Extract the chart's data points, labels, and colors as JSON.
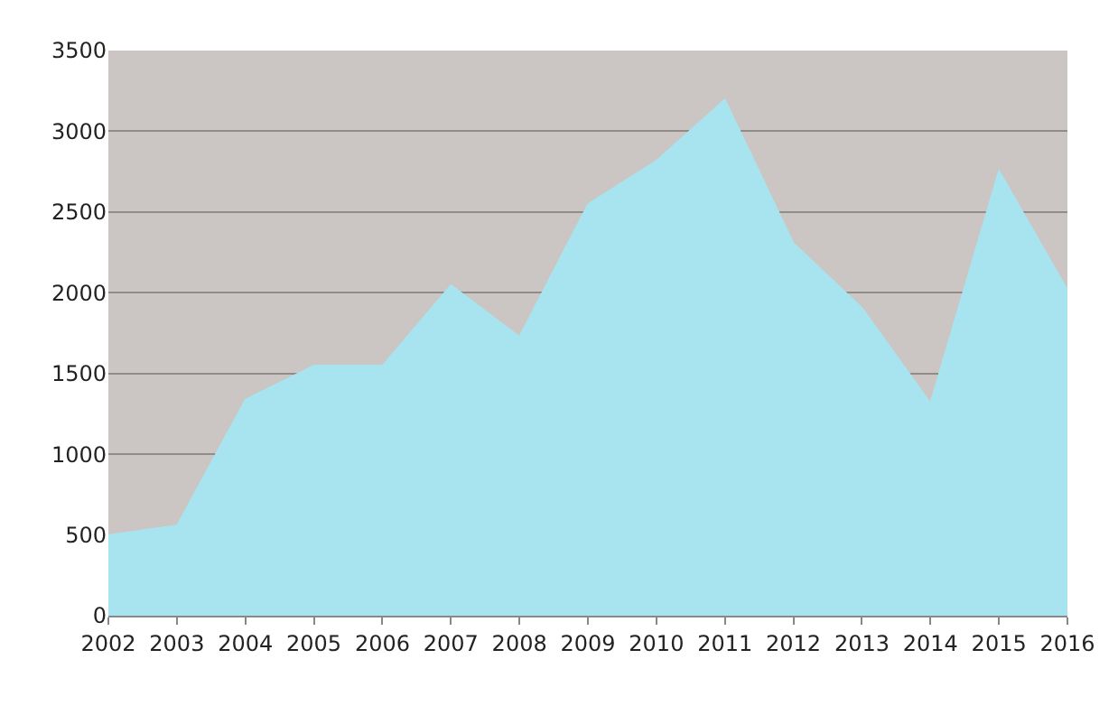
{
  "chart_data": {
    "type": "area",
    "categories": [
      "2002",
      "2003",
      "2004",
      "2005",
      "2006",
      "2007",
      "2008",
      "2009",
      "2010",
      "2011",
      "2012",
      "2013",
      "2014",
      "2015",
      "2016"
    ],
    "values": [
      500,
      560,
      1340,
      1550,
      1550,
      2050,
      1730,
      2550,
      2820,
      3200,
      2310,
      1910,
      1320,
      2760,
      2020
    ],
    "color": "#a8e4ef",
    "ylim": [
      0,
      3500
    ],
    "yticks": [
      0,
      500,
      1000,
      1500,
      2000,
      2500,
      3000,
      3500
    ],
    "grid": "y"
  }
}
